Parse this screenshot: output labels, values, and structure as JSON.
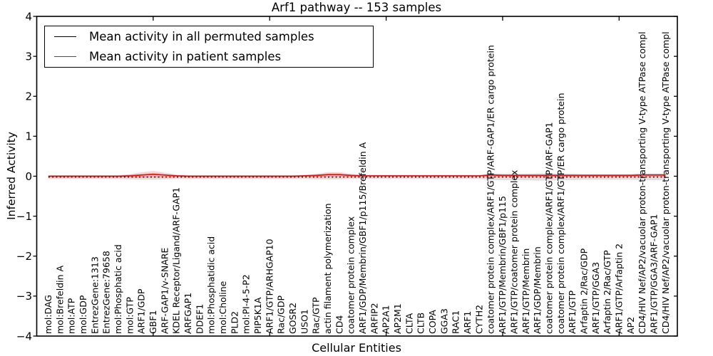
{
  "figure": {
    "title": "Arf1 pathway -- 153 samples",
    "xlabel": "Cellular Entities",
    "ylabel": "Inferred Activity",
    "legend": {
      "items": [
        {
          "label": "Mean activity in all permuted samples",
          "color": "#000000"
        },
        {
          "label": "Mean activity in patient samples",
          "color": "#ff0000"
        }
      ]
    },
    "colors": {
      "background": "#ffffff",
      "axis": "#000000",
      "permuted_line": "#000000",
      "patient_line": "#ff0000",
      "permuted_band": "rgba(0,0,0,0.12)",
      "patient_band": "rgba(255,0,0,0.18)"
    }
  },
  "chart_data": {
    "type": "line",
    "title": "Arf1 pathway -- 153 samples",
    "xlabel": "Cellular Entities",
    "ylabel": "Inferred Activity",
    "ylim": [
      -4,
      4
    ],
    "yticks": [
      4,
      3,
      2,
      1,
      0,
      -1,
      -2,
      -3,
      -4
    ],
    "ytick_labels": [
      "4",
      "3",
      "2",
      "1",
      "0",
      "−1",
      "−2",
      "−3",
      "−4"
    ],
    "xtick_positions": [
      10,
      20,
      30,
      40,
      50
    ],
    "grid": false,
    "legend_position": "upper left",
    "categories": [
      "mol:DAG",
      "mol:Brefeldin A",
      "mol:ATP",
      "mol:GDP",
      "EntrezGene:1313",
      "EntrezGene:79658",
      "mol:Phosphatic acid",
      "mol:GTP",
      "ARF1/GDP",
      "GBF1",
      "ARF-GAP1/v-SNARE",
      "KDEL Receptor/Ligand/ARF-GAP1",
      "ARFGAP1",
      "DDEF1",
      "mol:Phosphatidic acid",
      "mol:Choline",
      "PLD2",
      "mol:PI-4-5-P2",
      "PIP5K1A",
      "ARF1/GTP/ARHGAP10",
      "Rac/GDP",
      "GOSR2",
      "USO1",
      "Rac/GTP",
      "actin filament polymerization",
      "CD4",
      "coatomer protein complex",
      "ARF1/GDP/Membrin/GBF1/p115/Brefeldin A",
      "ARFIP2",
      "AP2A1",
      "AP2M1",
      "CLTA",
      "CLTB",
      "COPA",
      "GGA3",
      "RAC1",
      "ARF1",
      "CYTH2",
      "coatomer protein complex/ARF1/GTP/ARF-GAP1/ER cargo protein",
      "ARF1/GTP/Membrin/GBF1/p115",
      "ARF1/GTP/coatomer protein complex",
      "ARF1/GTP/Membrin",
      "ARF1/GDP/Membrin",
      "coatomer protein complex/ARF1/GTP/ARF-GAP1",
      "coatomer protein complex/ARF1/GTP/ER cargo protein",
      "ARF1/GTP",
      "Arfaptin 2/Rac/GDP",
      "ARF1/GTP/GGA3",
      "Arfaptin 2/Rac/GTP",
      "ARF1/GTP/Arfaptin 2",
      "AP2",
      "CD4/HIV Nef/AP2/vacuolar proton-transporting V-type ATPase compl",
      "ARF1/GTP/GGA3/ARF-GAP1",
      "CD4/HIV Nef/AP2/vacuolar proton-transporting V-type ATPase compl"
    ],
    "series": [
      {
        "name": "Mean activity in all permuted samples",
        "color": "#000000",
        "style": "dotted",
        "values": [
          -0.02,
          -0.02,
          -0.02,
          -0.02,
          -0.02,
          -0.02,
          -0.02,
          -0.02,
          -0.02,
          -0.02,
          -0.02,
          -0.02,
          -0.02,
          -0.02,
          -0.02,
          -0.02,
          -0.02,
          -0.02,
          -0.02,
          -0.02,
          -0.02,
          -0.02,
          -0.02,
          -0.02,
          -0.02,
          -0.02,
          -0.02,
          -0.02,
          -0.02,
          -0.02,
          -0.02,
          -0.02,
          -0.02,
          -0.02,
          -0.02,
          -0.02,
          -0.02,
          -0.02,
          -0.02,
          -0.02,
          -0.02,
          -0.02,
          -0.02,
          -0.02,
          -0.02,
          -0.02,
          -0.02,
          -0.02,
          -0.02,
          -0.02,
          -0.02,
          -0.02,
          -0.02,
          -0.02
        ]
      },
      {
        "name": "Mean activity in patient samples",
        "color": "#ff0000",
        "style": "solid",
        "values": [
          0,
          0,
          0,
          0,
          0,
          0,
          0,
          0.01,
          0.03,
          0.05,
          0.03,
          0.01,
          0,
          0,
          0,
          0,
          0,
          0,
          0,
          0,
          0,
          0,
          0.01,
          0.02,
          0.04,
          0.04,
          0.02,
          0.01,
          0.01,
          0.01,
          0.01,
          0.01,
          0.01,
          0.01,
          0.01,
          0.01,
          0.01,
          0.01,
          0.03,
          0.02,
          0.02,
          0.02,
          0.02,
          0.02,
          0.02,
          0.02,
          0.02,
          0.02,
          0.02,
          0.02,
          0.02,
          0.03,
          0.03,
          0.03
        ]
      }
    ],
    "permuted_band_halfwidth": [
      0.05,
      0.05,
      0.05,
      0.05,
      0.05,
      0.05,
      0.05,
      0.06,
      0.07,
      0.07,
      0.06,
      0.05,
      0.05,
      0.05,
      0.05,
      0.05,
      0.05,
      0.05,
      0.05,
      0.05,
      0.05,
      0.05,
      0.05,
      0.06,
      0.06,
      0.06,
      0.05,
      0.05,
      0.05,
      0.05,
      0.05,
      0.05,
      0.05,
      0.05,
      0.05,
      0.05,
      0.05,
      0.05,
      0.08,
      0.08,
      0.08,
      0.08,
      0.09,
      0.09,
      0.08,
      0.08,
      0.07,
      0.07,
      0.07,
      0.07,
      0.07,
      0.08,
      0.08,
      0.08
    ],
    "patient_band_halfwidth": [
      0.01,
      0.01,
      0.01,
      0.01,
      0.01,
      0.01,
      0.01,
      0.04,
      0.07,
      0.08,
      0.06,
      0.03,
      0.01,
      0.01,
      0.01,
      0.01,
      0.01,
      0.01,
      0.01,
      0.01,
      0.01,
      0.01,
      0.02,
      0.04,
      0.06,
      0.06,
      0.04,
      0.02,
      0.01,
      0.01,
      0.01,
      0.01,
      0.01,
      0.01,
      0.01,
      0.01,
      0.01,
      0.01,
      0.04,
      0.03,
      0.03,
      0.03,
      0.03,
      0.03,
      0.03,
      0.03,
      0.03,
      0.03,
      0.03,
      0.03,
      0.03,
      0.04,
      0.04,
      0.04
    ]
  }
}
